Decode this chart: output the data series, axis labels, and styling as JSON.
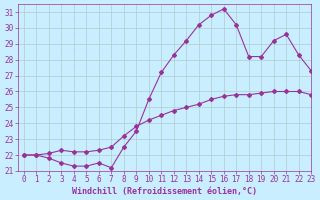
{
  "line1_x": [
    0,
    1,
    2,
    3,
    4,
    5,
    6,
    7,
    8,
    9,
    10,
    11,
    12,
    13,
    14,
    15,
    16,
    17,
    18,
    19,
    20,
    21,
    22,
    23
  ],
  "line1_y": [
    22,
    22,
    21.8,
    21.5,
    21.3,
    21.3,
    21.5,
    21.2,
    22.5,
    23.5,
    25.5,
    27.2,
    28.3,
    29.2,
    30.2,
    30.8,
    31.2,
    30.2,
    28.2,
    28.2,
    29.2,
    29.6,
    28.3,
    27.3
  ],
  "line2_x": [
    0,
    1,
    2,
    3,
    4,
    5,
    6,
    7,
    8,
    9,
    10,
    11,
    12,
    13,
    14,
    15,
    16,
    17,
    18,
    19,
    20,
    21,
    22,
    23
  ],
  "line2_y": [
    22,
    22,
    22.1,
    22.3,
    22.2,
    22.2,
    22.3,
    22.5,
    23.2,
    23.8,
    24.2,
    24.5,
    24.8,
    25.0,
    25.2,
    25.5,
    25.7,
    25.8,
    25.8,
    25.9,
    26.0,
    26.0,
    26.0,
    25.8
  ],
  "line_color": "#993399",
  "bg_color": "#c8eeff",
  "grid_color": "#b0cccc",
  "xlim": [
    -0.5,
    23
  ],
  "ylim": [
    21,
    31.5
  ],
  "xlabel": "Windchill (Refroidissement éolien,°C)",
  "yticks": [
    21,
    22,
    23,
    24,
    25,
    26,
    27,
    28,
    29,
    30,
    31
  ],
  "xticks": [
    0,
    1,
    2,
    3,
    4,
    5,
    6,
    7,
    8,
    9,
    10,
    11,
    12,
    13,
    14,
    15,
    16,
    17,
    18,
    19,
    20,
    21,
    22,
    23
  ],
  "marker": "D",
  "markersize": 2.0,
  "linewidth": 0.8,
  "tick_fontsize": 5.5,
  "xlabel_fontsize": 6.0
}
